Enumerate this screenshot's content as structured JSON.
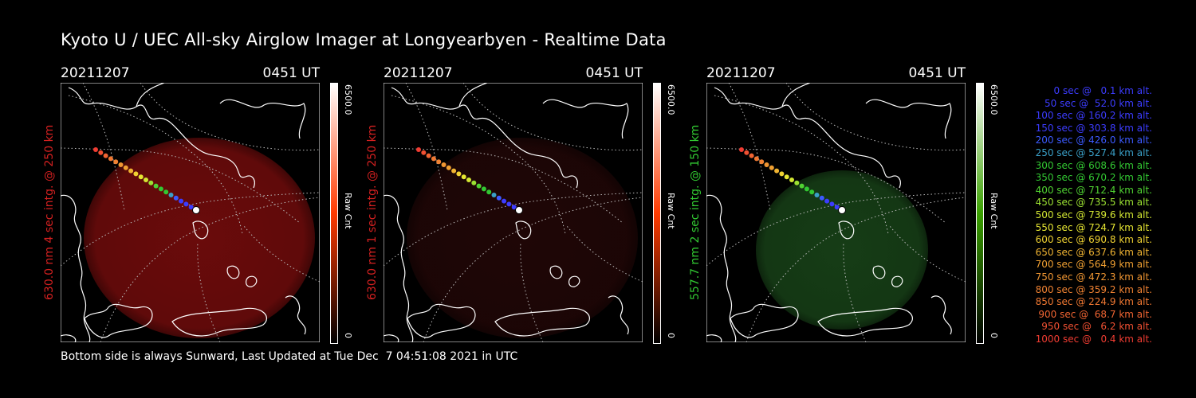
{
  "title": "Kyoto U / UEC All-sky Airglow Imager at Longyearbyen - Realtime Data",
  "footer": "Bottom side is always Sunward, Last Updated at Tue Dec  7 04:51:08 2021 in UTC",
  "panels": [
    {
      "date": "20211207",
      "time": "0451 UT",
      "label": "630.0 nm 4 sec intg. @ 250 km",
      "label_color": "#d32020",
      "cmax": "6500.0",
      "cmin": "0",
      "unit": "Raw Cnt",
      "glow": "#6a0b0b",
      "colorbar": [
        "#ffffff",
        "#ff3a00",
        "#000000"
      ]
    },
    {
      "date": "20211207",
      "time": "0451 UT",
      "label": "630.0 nm 1 sec intg. @ 250 km",
      "label_color": "#d32020",
      "cmax": "6500.0",
      "cmin": "0",
      "unit": "Raw Cnt",
      "glow": "#1f0606",
      "colorbar": [
        "#ffffff",
        "#ff3a00",
        "#000000"
      ]
    },
    {
      "date": "20211207",
      "time": "0451 UT",
      "label": "557.7 nm 2 sec intg. @ 150 km",
      "label_color": "#32c832",
      "cmax": "6500.0",
      "cmin": "0",
      "unit": "Raw Cnt",
      "glow": "#163d16",
      "colorbar": [
        "#ffffff",
        "#3aa000",
        "#000000"
      ]
    }
  ],
  "legend": [
    {
      "text": "0 sec @   0.1 km alt.",
      "color": "#3c3cff"
    },
    {
      "text": "50 sec @  52.0 km alt.",
      "color": "#3c3cff"
    },
    {
      "text": "100 sec @ 160.2 km alt.",
      "color": "#3c3cff"
    },
    {
      "text": "150 sec @ 303.8 km alt.",
      "color": "#3c3cff"
    },
    {
      "text": "200 sec @ 426.0 km alt.",
      "color": "#3c5aff"
    },
    {
      "text": "250 sec @ 527.4 km alt.",
      "color": "#3aa0c8"
    },
    {
      "text": "300 sec @ 608.6 km alt.",
      "color": "#32c832"
    },
    {
      "text": "350 sec @ 670.2 km alt.",
      "color": "#32c832"
    },
    {
      "text": "400 sec @ 712.4 km alt.",
      "color": "#50d232"
    },
    {
      "text": "450 sec @ 735.5 km alt.",
      "color": "#9be132"
    },
    {
      "text": "500 sec @ 739.6 km alt.",
      "color": "#d2e632"
    },
    {
      "text": "550 sec @ 724.7 km alt.",
      "color": "#e6e632"
    },
    {
      "text": "600 sec @ 690.8 km alt.",
      "color": "#f0d232"
    },
    {
      "text": "650 sec @ 637.6 km alt.",
      "color": "#f0b432"
    },
    {
      "text": "700 sec @ 564.9 km alt.",
      "color": "#f0a032"
    },
    {
      "text": "750 sec @ 472.3 km alt.",
      "color": "#f09632"
    },
    {
      "text": "800 sec @ 359.2 km alt.",
      "color": "#f08232"
    },
    {
      "text": "850 sec @ 224.9 km alt.",
      "color": "#f07832"
    },
    {
      "text": "900 sec @  68.7 km alt.",
      "color": "#f06432"
    },
    {
      "text": "950 sec @   6.2 km alt.",
      "color": "#f05032"
    },
    {
      "text": "1000 sec @   0.4 km alt.",
      "color": "#f03c32"
    }
  ]
}
